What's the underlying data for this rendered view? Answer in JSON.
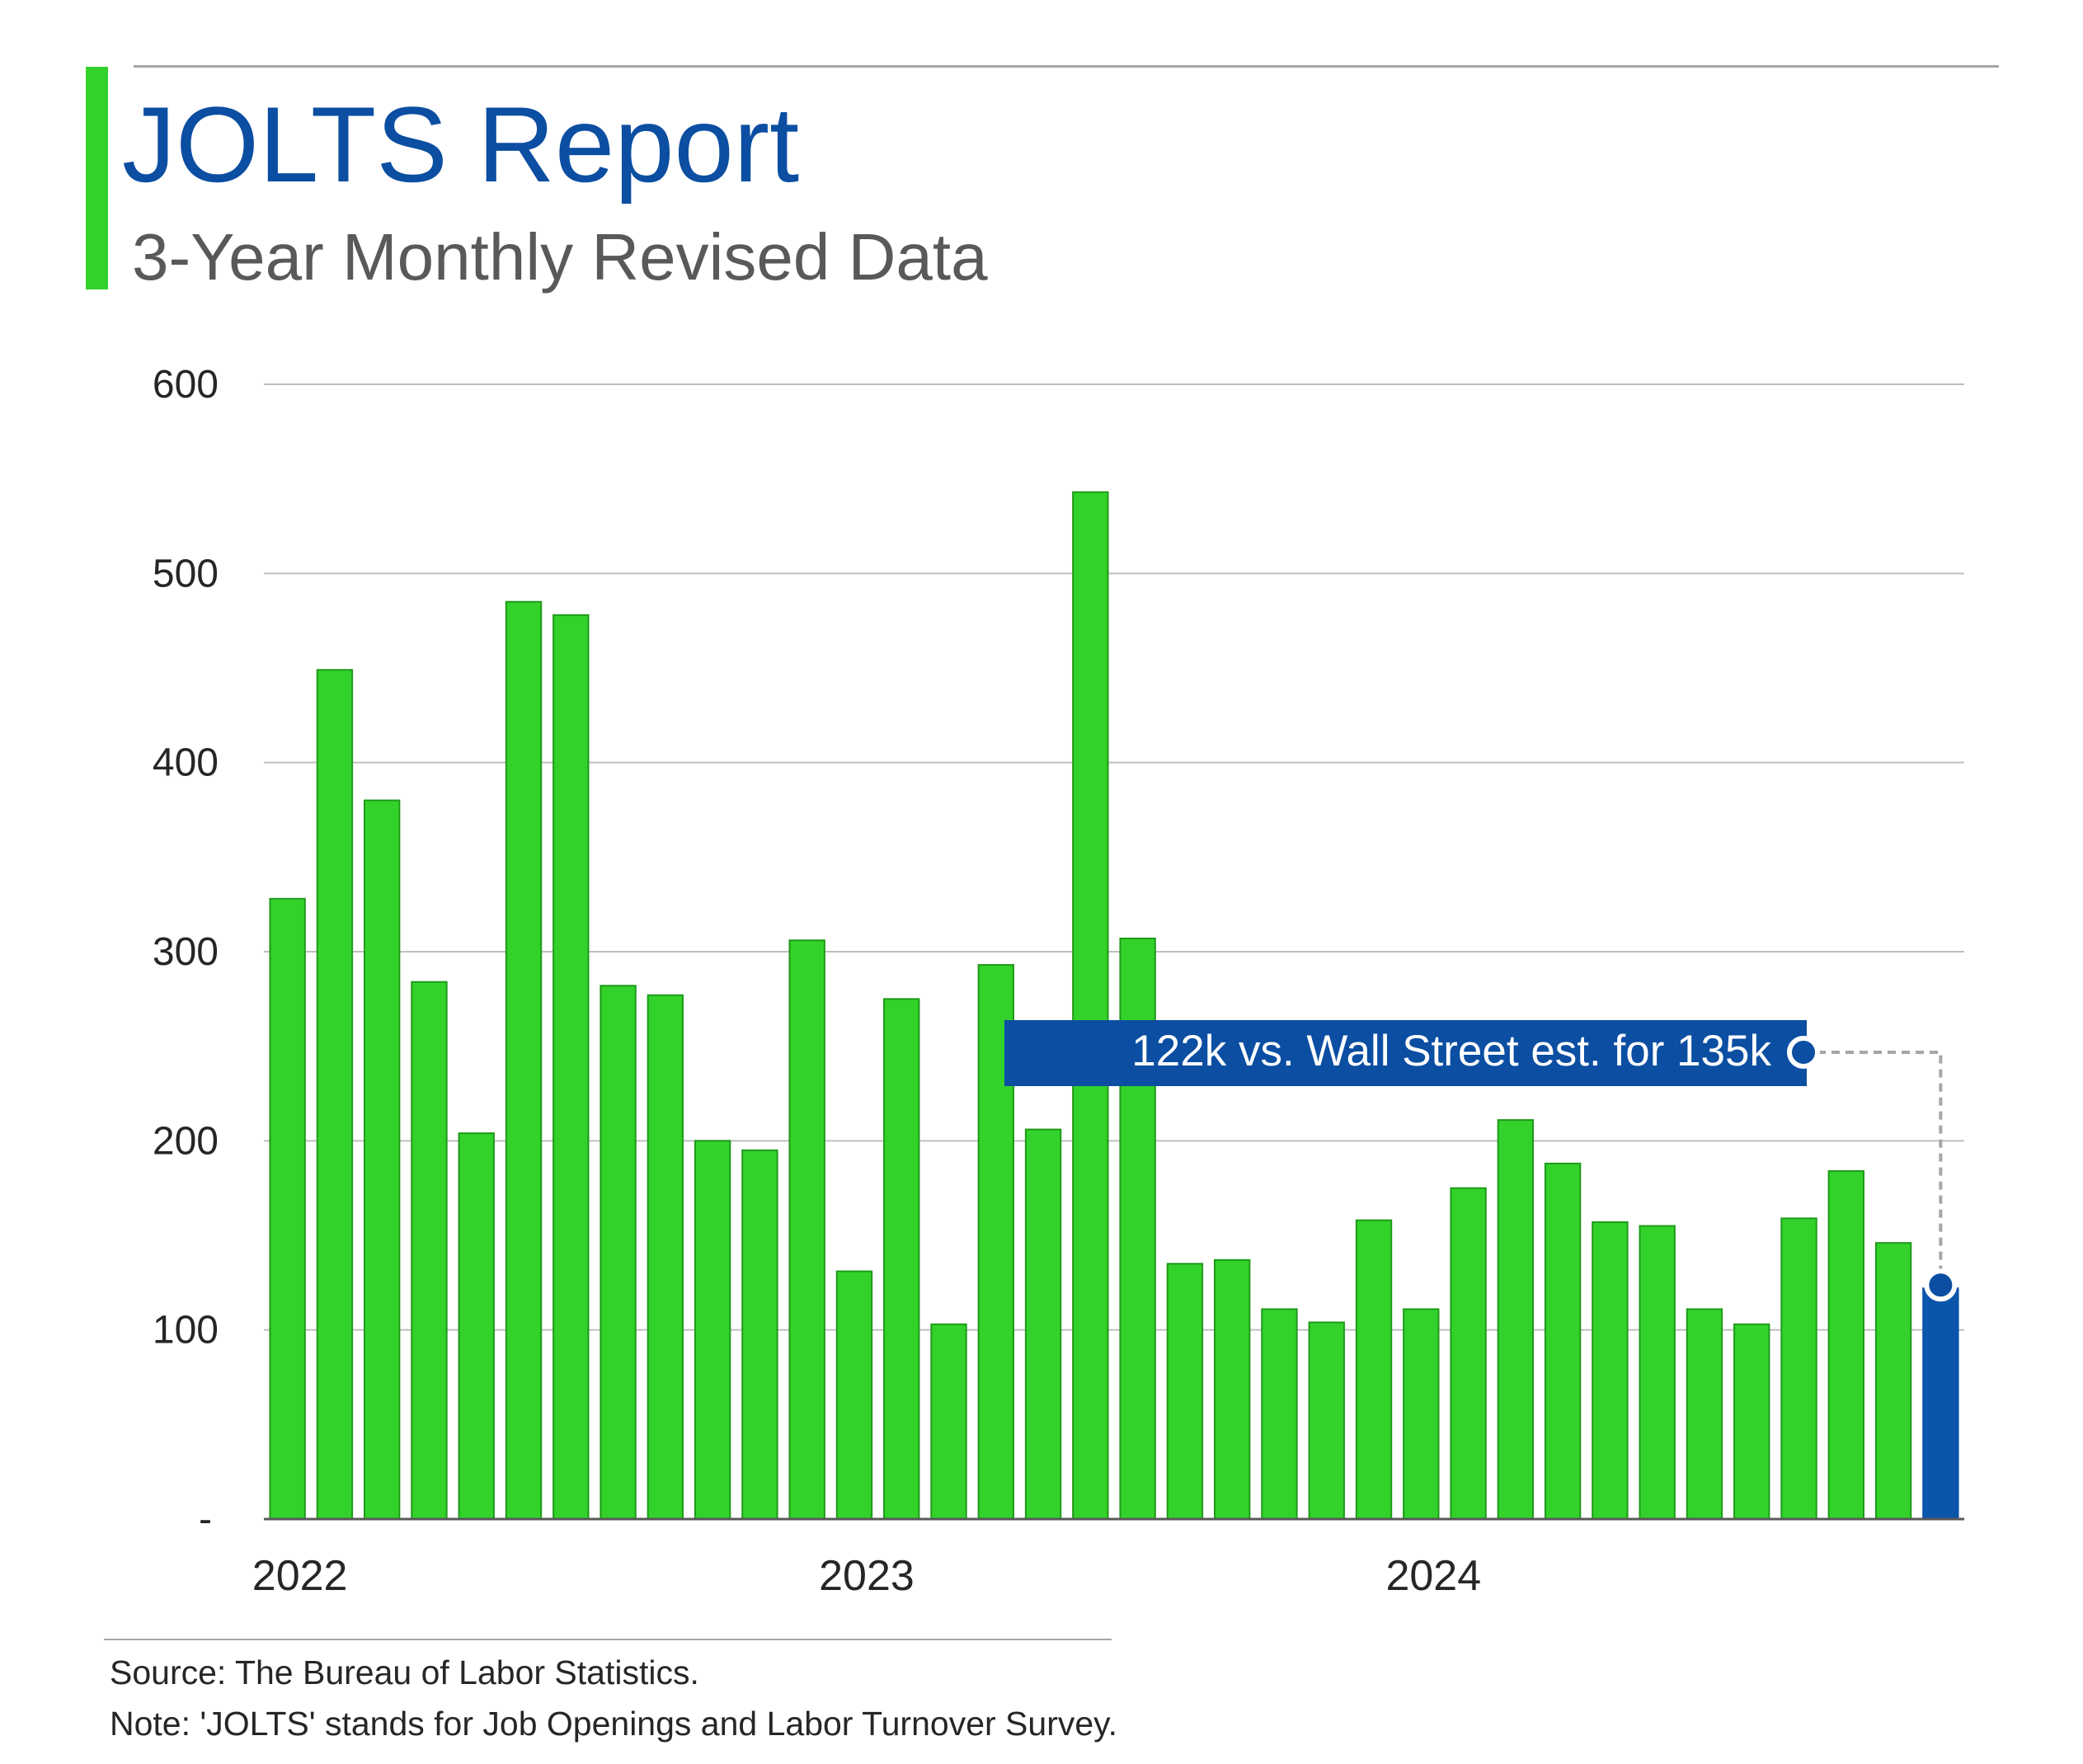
{
  "header": {
    "title": "JOLTS Report",
    "subtitle": "3-Year Monthly Revised Data"
  },
  "chart_data": {
    "type": "bar",
    "title": "JOLTS Report",
    "subtitle": "3-Year Monthly Revised Data",
    "xlabel": "",
    "ylabel": "",
    "ylim": [
      0,
      600
    ],
    "y_ticks": [
      {
        "value": 0,
        "label": "-"
      },
      {
        "value": 100,
        "label": "100"
      },
      {
        "value": 200,
        "label": "200"
      },
      {
        "value": 300,
        "label": "300"
      },
      {
        "value": 400,
        "label": "400"
      },
      {
        "value": 500,
        "label": "500"
      },
      {
        "value": 600,
        "label": "600"
      }
    ],
    "x_ticks": [
      {
        "index": 0,
        "label": "2022"
      },
      {
        "index": 12,
        "label": "2023"
      },
      {
        "index": 24,
        "label": "2024"
      }
    ],
    "values": [
      328,
      449,
      380,
      284,
      204,
      485,
      478,
      282,
      277,
      200,
      195,
      306,
      131,
      275,
      103,
      293,
      206,
      543,
      307,
      135,
      137,
      111,
      104,
      158,
      111,
      175,
      211,
      188,
      157,
      155,
      111,
      103,
      159,
      184,
      146,
      122
    ],
    "grid": true,
    "legend": "none",
    "colors": {
      "bar": "#33d22b",
      "bar_edge": "#1f9a1a",
      "highlight": "#0b55ab",
      "grid": "#bfbfbf",
      "axis": "#595959"
    },
    "highlight_index": 35,
    "annotation": {
      "text": "122k vs. Wall Street est. for 135k",
      "target_index": 35
    }
  },
  "footer": {
    "source": "Source: The Bureau of Labor Statistics.",
    "note": "Note: 'JOLTS' stands for Job Openings and Labor Turnover Survey."
  }
}
